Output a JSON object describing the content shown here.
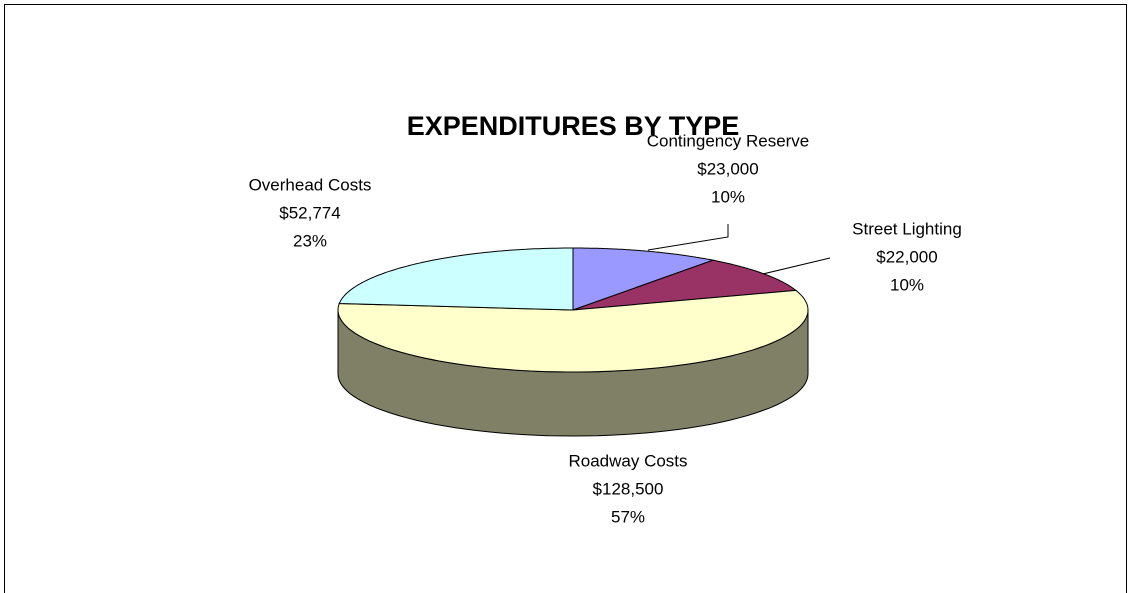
{
  "chart_data": {
    "type": "pie",
    "title": "EXPENDITURES BY TYPE",
    "categories": [
      "Contingency Reserve",
      "Street Lighting",
      "Roadway Costs",
      "Overhead Costs"
    ],
    "values": [
      23000,
      22000,
      128500,
      52774
    ],
    "value_labels": [
      "$23,000",
      "$22,000",
      "$128,500",
      "$52,774"
    ],
    "percentages": [
      10,
      10,
      57,
      23
    ],
    "percentage_labels": [
      "10%",
      "10%",
      "57%",
      "23%"
    ],
    "colors": [
      "#9999ff",
      "#993366",
      "#ffffcc",
      "#ccffff"
    ],
    "start_angle": 0,
    "direction": "clockwise",
    "three_d": true
  }
}
